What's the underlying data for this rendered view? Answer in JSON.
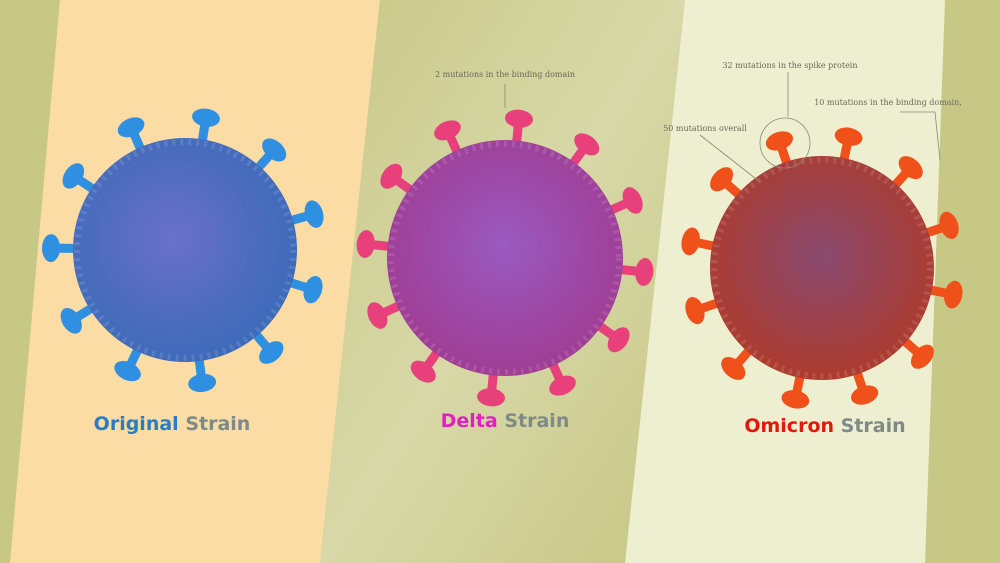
{
  "panels": [
    {
      "name": "Original",
      "label": "Strain"
    },
    {
      "name": "Delta",
      "label": "Strain",
      "annotations": [
        "2 mutations in the binding domain"
      ]
    },
    {
      "name": "Omicron",
      "label": "Strain",
      "annotations": [
        "32 mutations in the spike protein",
        "10 mutations in the binding domain,",
        "50 mutations overall"
      ]
    }
  ]
}
